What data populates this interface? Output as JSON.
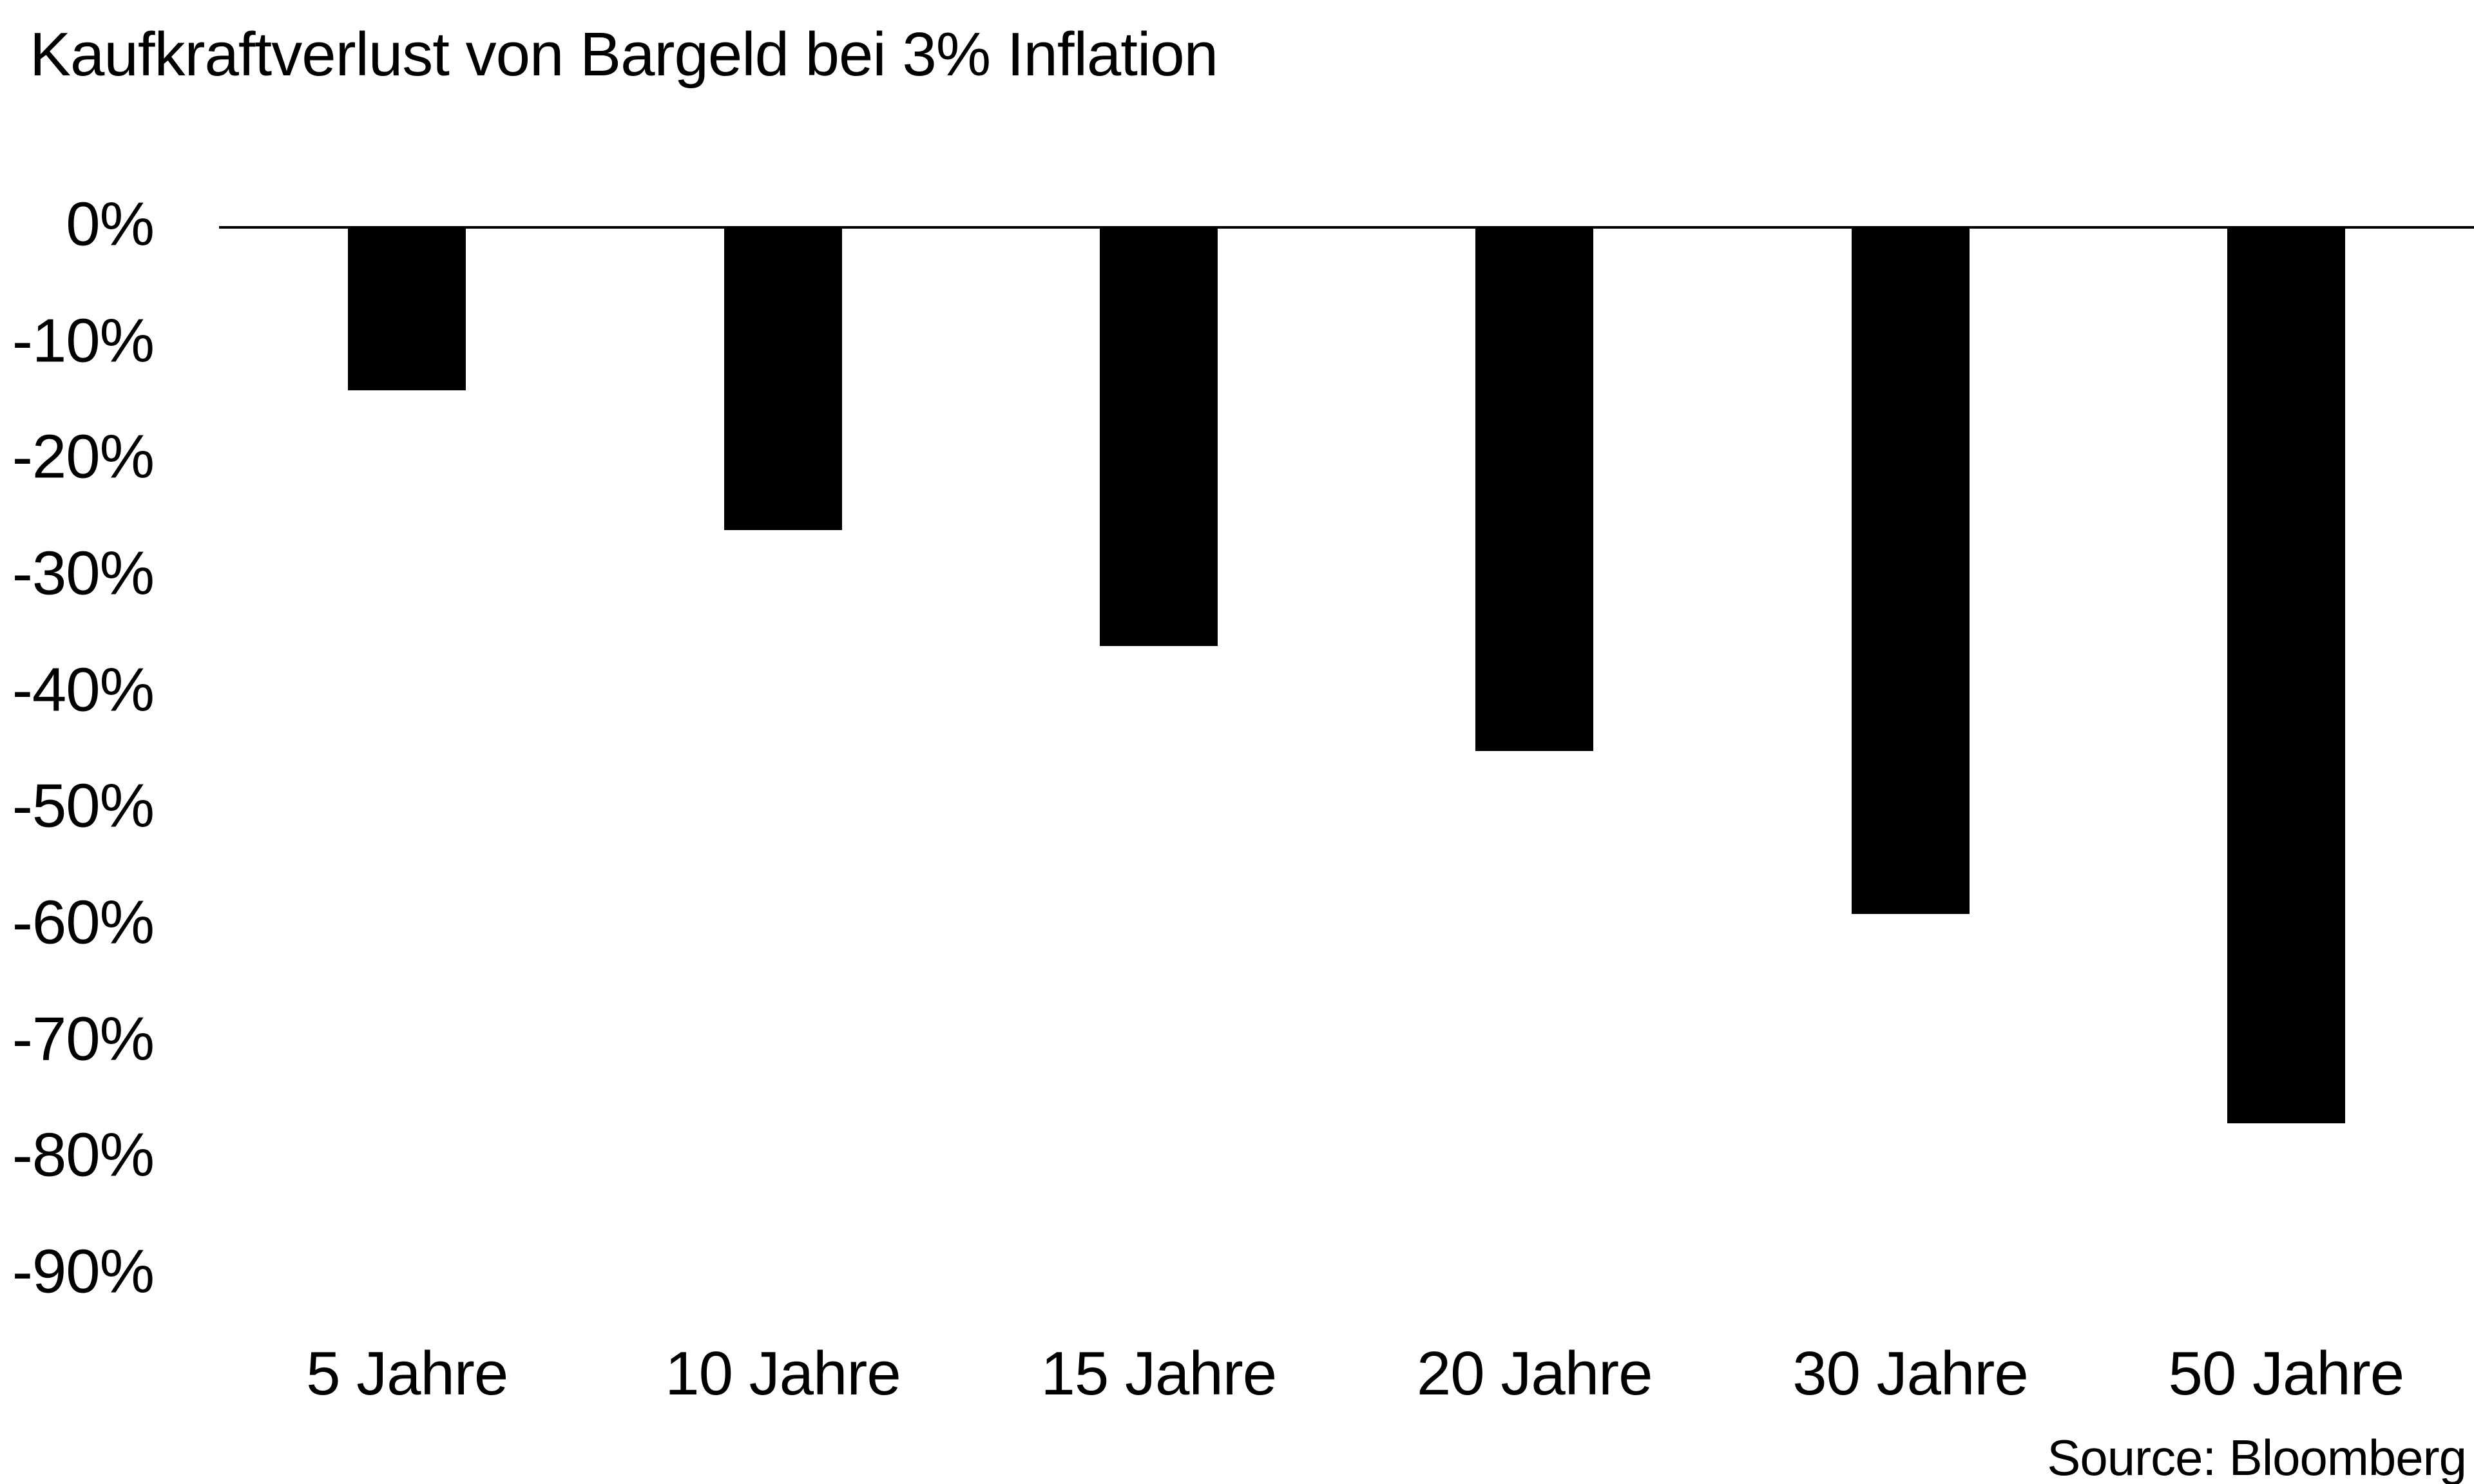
{
  "title": "Kaufkraftverlust von Bargeld bei 3% Inflation",
  "source_note": "Source: Bloomberg",
  "colors": {
    "background": "#ffffff",
    "text": "#000000",
    "bar": "#000000",
    "axis_line": "#000000"
  },
  "chart_data": {
    "type": "bar",
    "title": "Kaufkraftverlust von Bargeld bei 3% Inflation",
    "categories": [
      "5 Jahre",
      "10 Jahre",
      "15 Jahre",
      "20 Jahre",
      "30 Jahre",
      "50 Jahre"
    ],
    "values": [
      -14,
      -26,
      -36,
      -45,
      -59,
      -77
    ],
    "unit": "%",
    "xlabel": "",
    "ylabel": "",
    "ylim": [
      -90,
      0
    ],
    "yticks": [
      0,
      -10,
      -20,
      -30,
      -40,
      -50,
      -60,
      -70,
      -80,
      -90
    ],
    "ytick_labels": [
      "0%",
      "-10%",
      "-20%",
      "-30%",
      "-40%",
      "-50%",
      "-60%",
      "-70%",
      "-80%",
      "-90%"
    ],
    "grid": false,
    "legend": false,
    "bar_color": "#000000",
    "baseline": "0% line drawn across full plot width, bars extend downward",
    "source": "Source: Bloomberg"
  }
}
